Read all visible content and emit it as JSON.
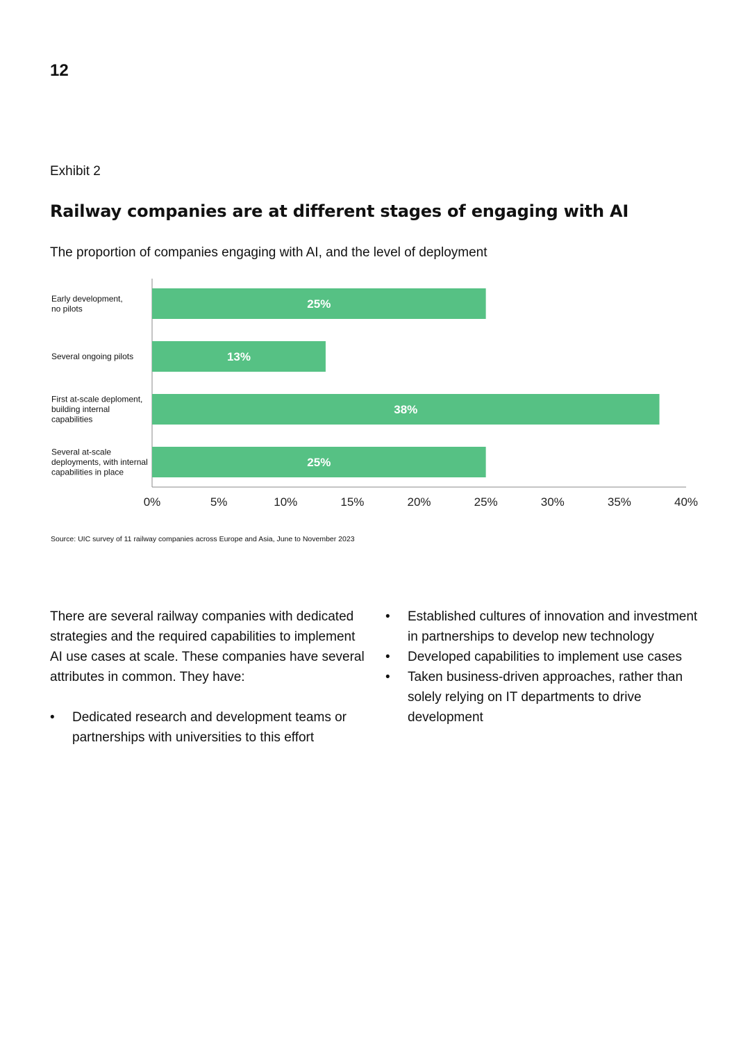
{
  "page": {
    "number": "12"
  },
  "exhibit": {
    "label": "Exhibit 2",
    "title": "Railway companies are at different stages of engaging with AI",
    "subtitle": "The proportion of companies engaging with AI, and the level of deployment"
  },
  "colors": {
    "bar": "#56c184",
    "axis": "#888888",
    "label_text": "#ffffff"
  },
  "chart_data": {
    "type": "bar",
    "orientation": "horizontal",
    "title": "The proportion of companies engaging with AI, and the level of deployment",
    "xlabel": "",
    "ylabel": "",
    "xlim": [
      0,
      40
    ],
    "categories": [
      [
        "Early development,",
        "no pilots"
      ],
      [
        "Several ongoing pilots"
      ],
      [
        "First at-scale deploment,",
        "building internal",
        "capabilities"
      ],
      [
        "Several at-scale",
        "deployments, with internal",
        "capabilities in place"
      ]
    ],
    "values": [
      25,
      13,
      38,
      25
    ],
    "value_labels": [
      "25%",
      "13%",
      "38%",
      "25%"
    ],
    "ticks": [
      0,
      5,
      10,
      15,
      20,
      25,
      30,
      35,
      40
    ],
    "tick_labels": [
      "0%",
      "5%",
      "10%",
      "15%",
      "20%",
      "25%",
      "30%",
      "35%",
      "40%"
    ],
    "grid": false,
    "legend": "none"
  },
  "source": "Source: UIC survey of 11 railway companies across Europe and Asia, June to November 2023",
  "body": {
    "intro": "There are several railway companies with dedicated strategies and the required capabilities to implement AI use cases at scale. These companies have several attributes in common. They have:",
    "bullet_symbol": "•",
    "bullets_left": [
      "Dedicated research and development teams or partnerships with universities to this effort"
    ],
    "bullets_right": [
      "Established cultures of innovation and investment in partnerships to develop new technology",
      "Developed capabilities to implement use cases",
      "Taken business-driven approaches, rather than solely relying on IT departments to drive development"
    ]
  }
}
